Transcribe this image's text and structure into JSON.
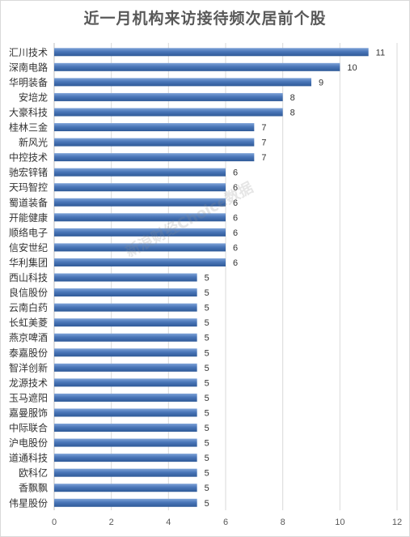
{
  "chart_data": {
    "type": "bar",
    "orientation": "horizontal",
    "title": "近一月机构来访接待频次居前个股",
    "categories": [
      "汇川技术",
      "深南电路",
      "华明装备",
      "安培龙",
      "大豪科技",
      "桂林三金",
      "新风光",
      "中控技术",
      "驰宏锌锗",
      "天玛智控",
      "蜀道装备",
      "开能健康",
      "顺络电子",
      "信安世纪",
      "华利集团",
      "西山科技",
      "良信股份",
      "云南白药",
      "长虹美菱",
      "燕京啤酒",
      "泰嘉股份",
      "智洋创新",
      "龙源技术",
      "玉马遮阳",
      "嘉曼服饰",
      "中际联合",
      "沪电股份",
      "道通科技",
      "欧科亿",
      "香飘飘",
      "伟星股份"
    ],
    "values": [
      11,
      10,
      9,
      8,
      8,
      7,
      7,
      7,
      6,
      6,
      6,
      6,
      6,
      6,
      6,
      5,
      5,
      5,
      5,
      5,
      5,
      5,
      5,
      5,
      5,
      5,
      5,
      5,
      5,
      5,
      5
    ],
    "xlim": [
      0,
      12
    ],
    "xticks": [
      0,
      2,
      4,
      6,
      8,
      10,
      12
    ],
    "grid": true,
    "bar_color": "#4a76b8"
  },
  "watermark": "新浪财经Choice数据"
}
